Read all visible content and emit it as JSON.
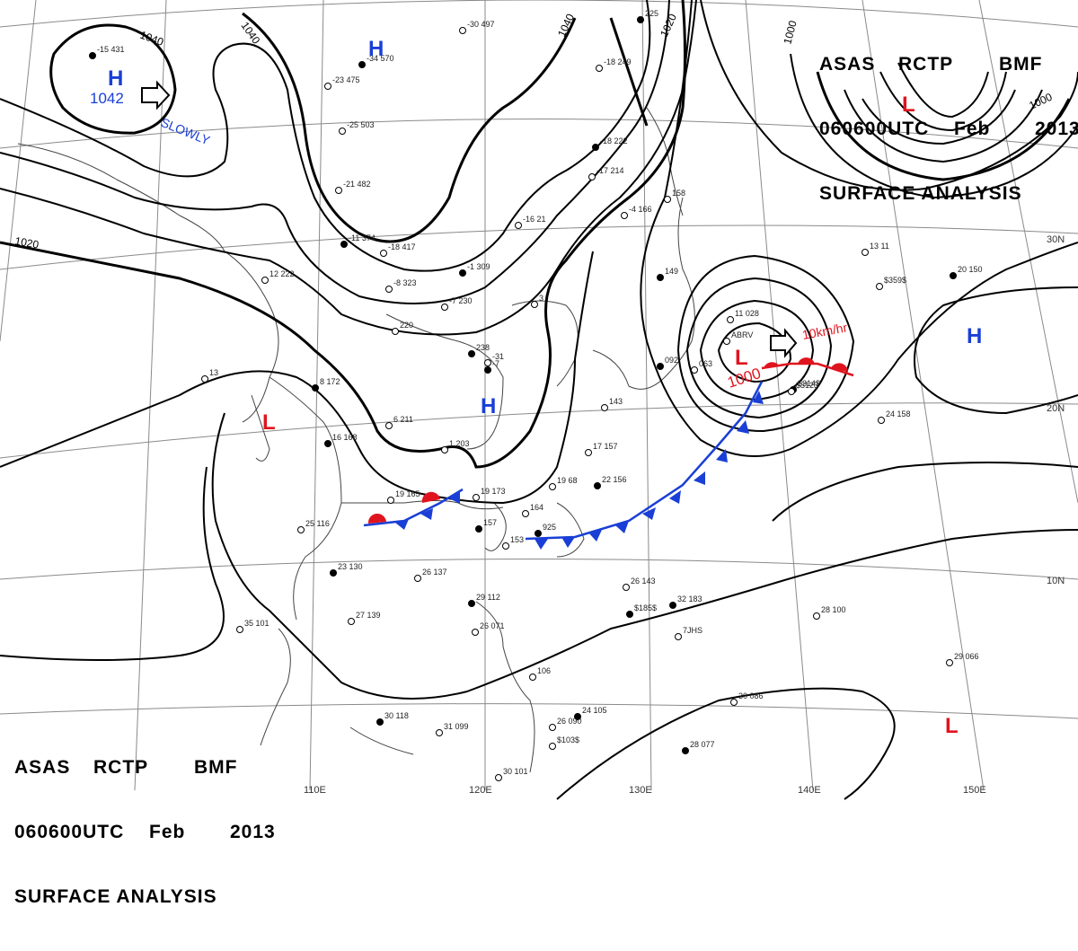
{
  "header": {
    "agency": "ASAS",
    "station": "RCTP",
    "office": "BMF",
    "valid_time": "060600UTC",
    "month": "Feb",
    "year": "2013",
    "product": "SURFACE ANALYSIS"
  },
  "pressure_systems": [
    {
      "type": "H",
      "value": "1042",
      "motion": "SLOWLY",
      "color": "#1a3fd6"
    },
    {
      "type": "H",
      "value": "",
      "motion": "",
      "color": "#1a3fd6"
    },
    {
      "type": "H",
      "value": "",
      "motion": "",
      "color": "#1a3fd6"
    },
    {
      "type": "H",
      "value": "",
      "motion": "",
      "color": "#1a3fd6"
    },
    {
      "type": "L",
      "value": "1000",
      "motion": "10km/hr",
      "color": "#e0141e"
    },
    {
      "type": "L",
      "value": "",
      "motion": "",
      "color": "#e0141e"
    },
    {
      "type": "L",
      "value": "",
      "motion": "",
      "color": "#e0141e"
    },
    {
      "type": "L",
      "value": "",
      "motion": "",
      "color": "#e0141e"
    }
  ],
  "isobar_labels": [
    "1040",
    "1040",
    "1040",
    "1020",
    "1020",
    "1000",
    "1000"
  ],
  "graticule": {
    "longitude_labels": [
      "110E",
      "120E",
      "130E",
      "140E",
      "150E"
    ],
    "latitude_labels": [
      "30N",
      "20N",
      "10N"
    ]
  },
  "fronts": {
    "cold_color": "#1a3fd6",
    "warm_color": "#e0141e"
  },
  "station_plots": [
    "-15 431",
    "-21 482",
    "-25 503",
    "-34 570",
    "-23 475",
    "-30 497",
    "-11 374",
    "-18 417",
    "-8 323",
    "-1 309",
    "-7 230",
    "220",
    "238",
    "3",
    "-31",
    "-7",
    "12 222",
    "13",
    "8 172",
    "6 211",
    "1 203",
    "16 168",
    "19 165",
    "19 173",
    "157",
    "164",
    "153",
    "925",
    "19 68",
    "17 157",
    "22 156",
    "143",
    "158",
    "149",
    "11 028",
    "063",
    "092",
    "-4 166",
    "-16 21",
    "-18 222",
    "-17 214",
    "-18 249",
    "225",
    "28 100",
    "26 143",
    "32 183",
    "35 101",
    "27 139",
    "23 130",
    "25 116",
    "26 137",
    "29 112",
    "26 071",
    "106",
    "30 118",
    "31 099",
    "30 101",
    "24 105",
    "26 090",
    "30 086",
    "28 077",
    "29 066",
    "24 158",
    "20 150",
    "13 11",
    "$359$",
    "$185$",
    "7JHS",
    "$103$",
    "$314$",
    "ABRV",
    "$3123"
  ],
  "legend_colors": {
    "isobar": "#000000",
    "graticule": "#8a8a8a",
    "coastline": "#444444",
    "high": "#1a3fd6",
    "low": "#e0141e"
  }
}
